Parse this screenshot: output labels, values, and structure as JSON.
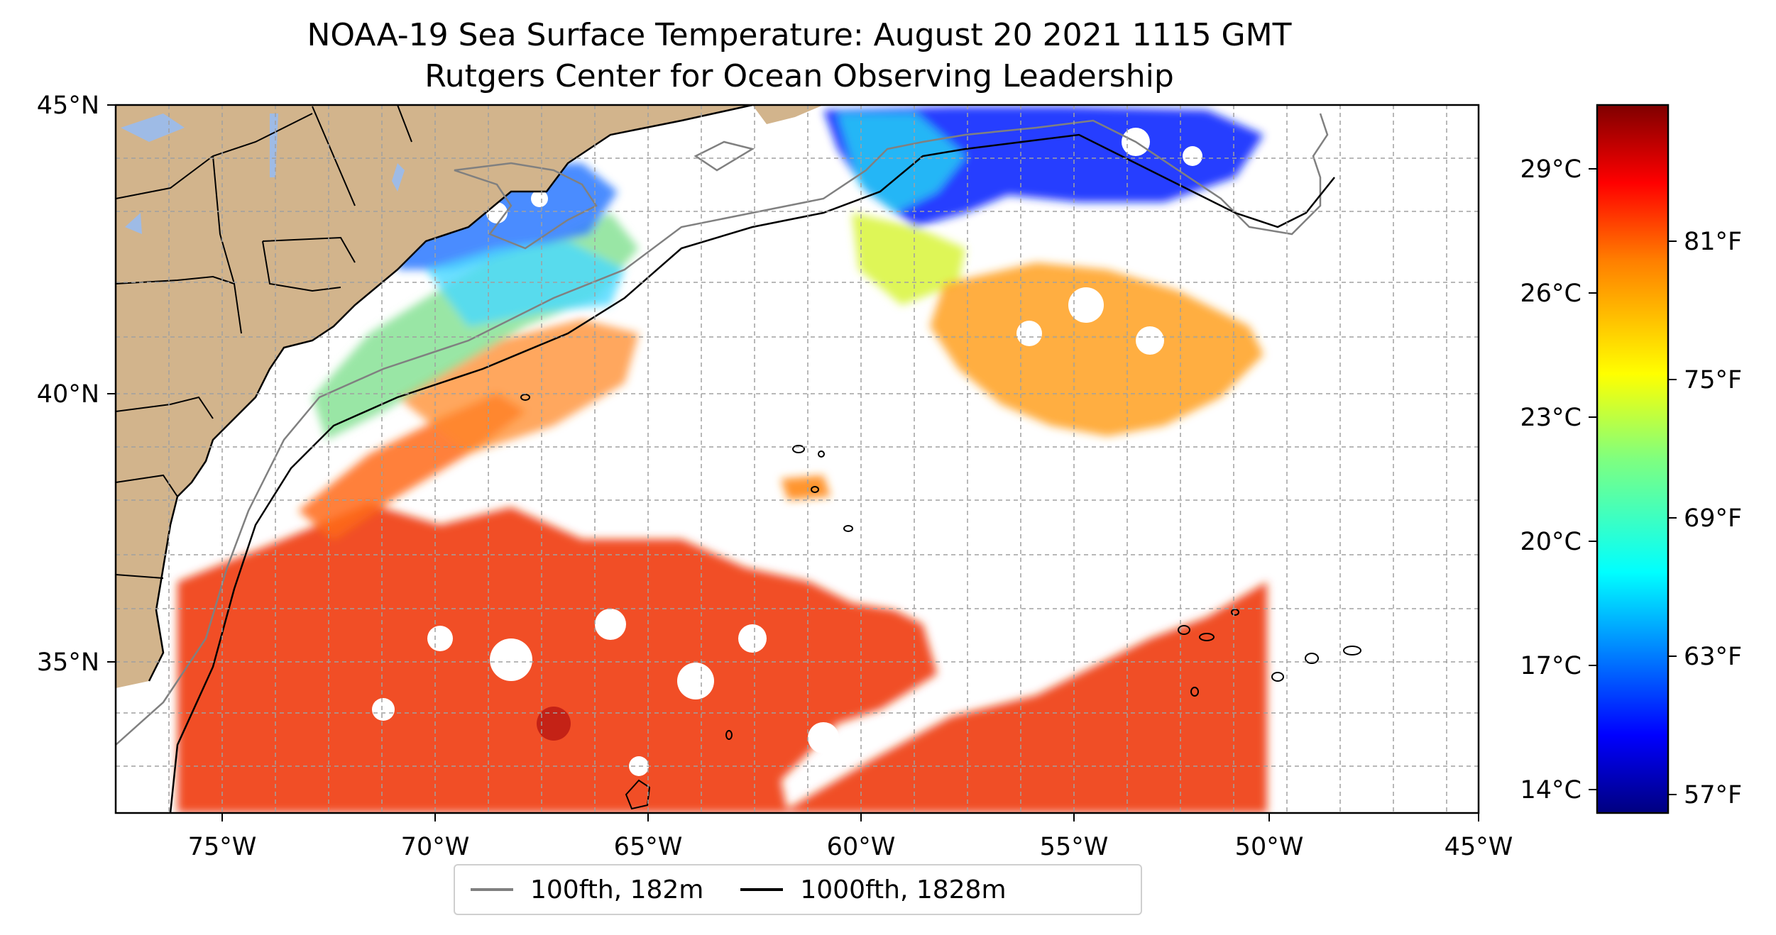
{
  "title": "NOAA-19 Sea Surface Temperature: August 20 2021 1115 GMT",
  "subtitle": "Rutgers Center for Ocean Observing Leadership",
  "map": {
    "lon_range": [
      -77,
      -45
    ],
    "lat_range": [
      32.3,
      45
    ],
    "lon_ticks": [
      "75°W",
      "70°W",
      "65°W",
      "60°W",
      "55°W",
      "50°W",
      "45°W"
    ],
    "lat_ticks": [
      "45°N",
      "40°N",
      "35°N"
    ],
    "land_color": "#d2b48c",
    "lake_color": "#9ebbe6",
    "grid": true,
    "data_extent_east": "50°W"
  },
  "colorbar": {
    "colormap": "jet",
    "celsius_labels": [
      "29°C",
      "26°C",
      "23°C",
      "20°C",
      "17°C",
      "14°C"
    ],
    "fahrenheit_labels": [
      "81°F",
      "75°F",
      "69°F",
      "63°F",
      "57°F"
    ],
    "colors": [
      "#00007f",
      "#0000ff",
      "#007fff",
      "#00ffff",
      "#7fff7f",
      "#ffff00",
      "#ff7f00",
      "#ff0000",
      "#7f0000"
    ]
  },
  "legend": {
    "items": [
      {
        "label": "100fth, 182m",
        "color": "#808080"
      },
      {
        "label": "1000fth, 1828m",
        "color": "#000000"
      }
    ]
  }
}
